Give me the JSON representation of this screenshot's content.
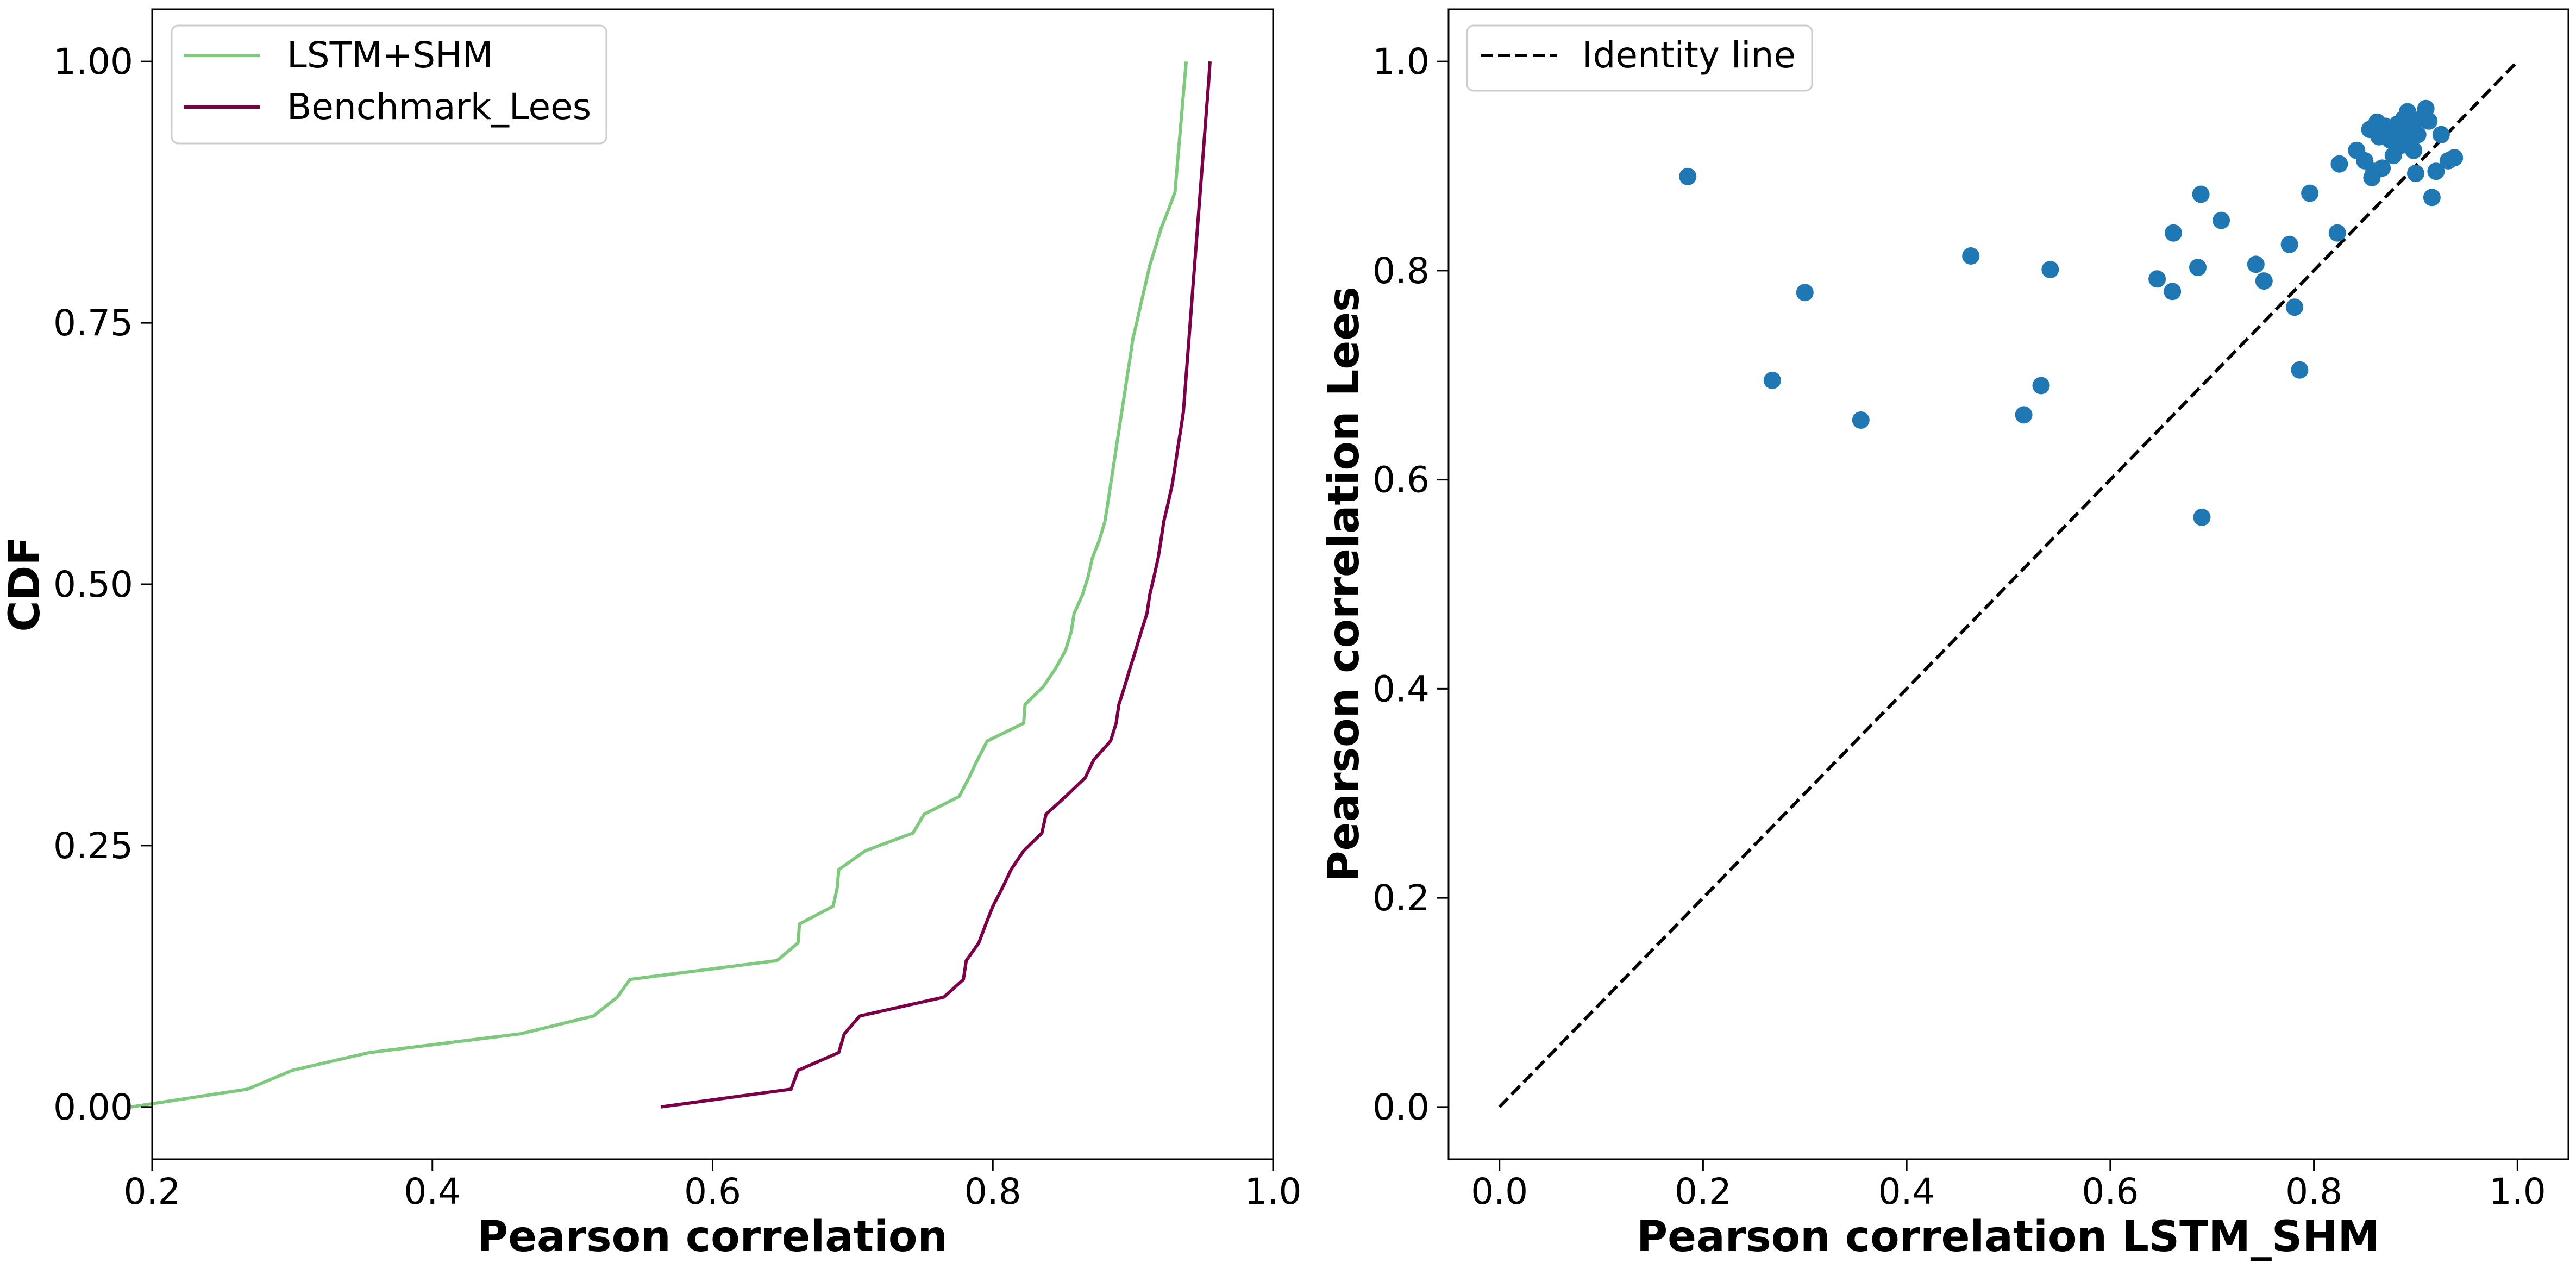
{
  "chart_data": [
    {
      "type": "line",
      "xlabel": "Pearson correlation",
      "ylabel": "CDF",
      "xlim": [
        0.2,
        1.0
      ],
      "ylim": [
        -0.05,
        1.05
      ],
      "xticks": [
        0.2,
        0.4,
        0.6,
        0.8,
        1.0
      ],
      "xtick_labels": [
        "0.2",
        "0.4",
        "0.6",
        "0.8",
        "1.0"
      ],
      "yticks": [
        0.0,
        0.25,
        0.5,
        0.75,
        1.0
      ],
      "ytick_labels": [
        "0.00",
        "0.25",
        "0.50",
        "0.75",
        "1.00"
      ],
      "grid": false,
      "legend_position": "top-left",
      "series": [
        {
          "name": "LSTM+SHM",
          "color": "#7fc97f",
          "x": [
            0.185,
            0.268,
            0.3,
            0.355,
            0.463,
            0.515,
            0.532,
            0.541,
            0.646,
            0.661,
            0.662,
            0.686,
            0.689,
            0.69,
            0.709,
            0.743,
            0.751,
            0.776,
            0.783,
            0.789,
            0.796,
            0.822,
            0.823,
            0.836,
            0.845,
            0.852,
            0.856,
            0.858,
            0.864,
            0.868,
            0.871,
            0.876,
            0.88,
            0.882,
            0.884,
            0.886,
            0.888,
            0.89,
            0.892,
            0.894,
            0.896,
            0.898,
            0.9,
            0.903,
            0.906,
            0.909,
            0.912,
            0.916,
            0.92,
            0.925,
            0.93,
            0.938
          ],
          "y": [
            0.0,
            0.017,
            0.035,
            0.052,
            0.07,
            0.087,
            0.105,
            0.122,
            0.14,
            0.157,
            0.175,
            0.192,
            0.21,
            0.227,
            0.245,
            0.262,
            0.28,
            0.297,
            0.315,
            0.332,
            0.35,
            0.367,
            0.385,
            0.402,
            0.42,
            0.437,
            0.455,
            0.472,
            0.49,
            0.507,
            0.525,
            0.542,
            0.56,
            0.577,
            0.595,
            0.612,
            0.63,
            0.647,
            0.665,
            0.682,
            0.7,
            0.717,
            0.735,
            0.752,
            0.77,
            0.787,
            0.805,
            0.822,
            0.84,
            0.857,
            0.875,
            1.0
          ]
        },
        {
          "name": "Benchmark_Lees",
          "color": "#7b0048",
          "x": [
            0.563,
            0.656,
            0.661,
            0.69,
            0.694,
            0.705,
            0.765,
            0.779,
            0.781,
            0.79,
            0.795,
            0.8,
            0.807,
            0.813,
            0.822,
            0.835,
            0.838,
            0.852,
            0.866,
            0.872,
            0.884,
            0.888,
            0.89,
            0.894,
            0.898,
            0.902,
            0.906,
            0.91,
            0.912,
            0.915,
            0.918,
            0.92,
            0.922,
            0.925,
            0.928,
            0.93,
            0.932,
            0.934,
            0.936,
            0.938,
            0.94,
            0.942,
            0.944,
            0.946,
            0.948,
            0.95,
            0.952,
            0.954,
            0.955
          ],
          "y": [
            0.0,
            0.017,
            0.035,
            0.052,
            0.07,
            0.087,
            0.105,
            0.122,
            0.14,
            0.157,
            0.175,
            0.192,
            0.21,
            0.227,
            0.245,
            0.262,
            0.28,
            0.297,
            0.315,
            0.332,
            0.35,
            0.367,
            0.385,
            0.402,
            0.42,
            0.437,
            0.455,
            0.472,
            0.49,
            0.507,
            0.525,
            0.542,
            0.56,
            0.577,
            0.595,
            0.612,
            0.63,
            0.647,
            0.665,
            0.7,
            0.735,
            0.77,
            0.805,
            0.84,
            0.875,
            0.91,
            0.945,
            0.98,
            1.0
          ]
        }
      ]
    },
    {
      "type": "scatter",
      "xlabel": "Pearson correlation LSTM_SHM",
      "ylabel": "Pearson correlation Lees",
      "xlim": [
        -0.05,
        1.05
      ],
      "ylim": [
        -0.05,
        1.05
      ],
      "xticks": [
        0.0,
        0.2,
        0.4,
        0.6,
        0.8,
        1.0
      ],
      "xtick_labels": [
        "0.0",
        "0.2",
        "0.4",
        "0.6",
        "0.8",
        "1.0"
      ],
      "yticks": [
        0.0,
        0.2,
        0.4,
        0.6,
        0.8,
        1.0
      ],
      "ytick_labels": [
        "0.0",
        "0.2",
        "0.4",
        "0.6",
        "0.8",
        "1.0"
      ],
      "grid": false,
      "legend_position": "top-left",
      "identity_line": {
        "name": "Identity line",
        "x": [
          0,
          1
        ],
        "y": [
          0,
          1
        ],
        "color": "#000000",
        "style": "dashed"
      },
      "series": [
        {
          "name": "",
          "color": "#1f77b4",
          "points": [
            [
              0.185,
              0.89
            ],
            [
              0.268,
              0.695
            ],
            [
              0.3,
              0.779
            ],
            [
              0.355,
              0.657
            ],
            [
              0.463,
              0.814
            ],
            [
              0.515,
              0.662
            ],
            [
              0.532,
              0.69
            ],
            [
              0.541,
              0.801
            ],
            [
              0.646,
              0.792
            ],
            [
              0.661,
              0.78
            ],
            [
              0.662,
              0.836
            ],
            [
              0.686,
              0.803
            ],
            [
              0.689,
              0.873
            ],
            [
              0.69,
              0.564
            ],
            [
              0.709,
              0.848
            ],
            [
              0.743,
              0.806
            ],
            [
              0.751,
              0.79
            ],
            [
              0.776,
              0.825
            ],
            [
              0.781,
              0.765
            ],
            [
              0.786,
              0.705
            ],
            [
              0.796,
              0.874
            ],
            [
              0.823,
              0.836
            ],
            [
              0.825,
              0.902
            ],
            [
              0.842,
              0.915
            ],
            [
              0.85,
              0.905
            ],
            [
              0.855,
              0.935
            ],
            [
              0.857,
              0.889
            ],
            [
              0.859,
              0.895
            ],
            [
              0.862,
              0.942
            ],
            [
              0.864,
              0.928
            ],
            [
              0.867,
              0.898
            ],
            [
              0.87,
              0.938
            ],
            [
              0.875,
              0.925
            ],
            [
              0.878,
              0.91
            ],
            [
              0.88,
              0.935
            ],
            [
              0.882,
              0.94
            ],
            [
              0.884,
              0.93
            ],
            [
              0.886,
              0.92
            ],
            [
              0.888,
              0.945
            ],
            [
              0.89,
              0.935
            ],
            [
              0.892,
              0.952
            ],
            [
              0.894,
              0.925
            ],
            [
              0.896,
              0.94
            ],
            [
              0.898,
              0.915
            ],
            [
              0.9,
              0.893
            ],
            [
              0.902,
              0.93
            ],
            [
              0.905,
              0.945
            ],
            [
              0.91,
              0.955
            ],
            [
              0.913,
              0.943
            ],
            [
              0.916,
              0.87
            ],
            [
              0.92,
              0.895
            ],
            [
              0.925,
              0.93
            ],
            [
              0.932,
              0.905
            ],
            [
              0.938,
              0.908
            ]
          ]
        }
      ]
    }
  ]
}
